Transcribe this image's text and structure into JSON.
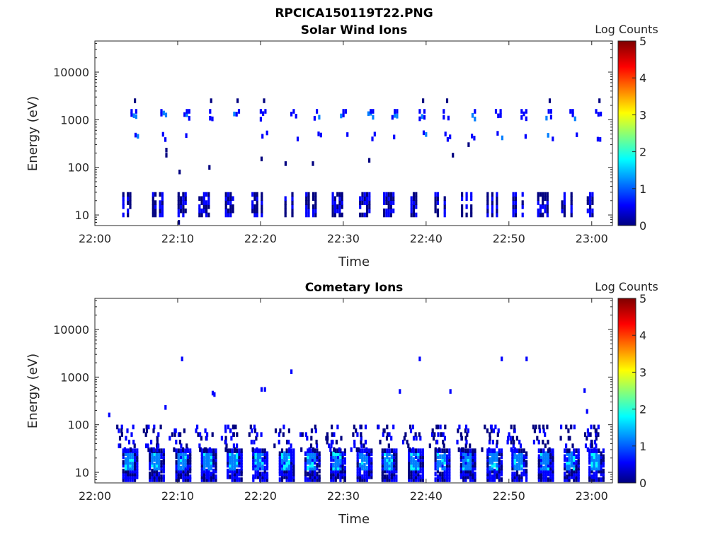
{
  "figure": {
    "title": "RPCICA150119T22.PNG"
  },
  "colors": {
    "axis": "#262626",
    "colormap": [
      "#00007f",
      "#0000ff",
      "#007fff",
      "#00ffff",
      "#7fff7f",
      "#ffff00",
      "#ff7f00",
      "#ff0000",
      "#7f0000"
    ]
  },
  "chart_data": [
    {
      "type": "heatmap",
      "title": "Solar Wind Ions",
      "xlabel": "Time",
      "ylabel": "Energy (eV)",
      "x_ticks": [
        "22:00",
        "22:10",
        "22:20",
        "22:30",
        "22:40",
        "22:50",
        "23:00"
      ],
      "x_range_minutes": [
        0,
        62.5
      ],
      "y_scale": "log",
      "y_range": [
        6,
        45000
      ],
      "y_ticks": [
        "10",
        "100",
        "1000",
        "10000"
      ],
      "colorbar": {
        "label": "Log Counts",
        "range": [
          0,
          5
        ],
        "ticks": [
          "0",
          "1",
          "2",
          "3",
          "4",
          "5"
        ]
      },
      "scan_start_minutes": [
        3.3,
        6.9,
        9.7,
        12.5,
        15.7,
        18.9,
        22.6,
        25.4,
        28.6,
        31.9,
        34.8,
        38.1,
        41.0,
        44.2,
        47.3,
        50.4,
        53.4,
        56.3,
        59.4
      ],
      "populations": [
        {
          "name": "",
          "energy_eV": 1200,
          "log_counts": 0.6
        },
        {
          "name": "",
          "energy_eV": 450,
          "log_counts": 0.5
        },
        {
          "name": "",
          "energy_eV": 18,
          "log_counts": 0.2
        }
      ]
    },
    {
      "type": "heatmap",
      "title": "Cometary Ions",
      "xlabel": "Time",
      "ylabel": "Energy (eV)",
      "x_ticks": [
        "22:00",
        "22:10",
        "22:20",
        "22:30",
        "22:40",
        "22:50",
        "23:00"
      ],
      "x_range_minutes": [
        0,
        62.5
      ],
      "y_scale": "log",
      "y_range": [
        6,
        45000
      ],
      "y_ticks": [
        "10",
        "100",
        "1000",
        "10000"
      ],
      "colorbar": {
        "label": "Log Counts",
        "range": [
          0,
          5
        ],
        "ticks": [
          "0",
          "1",
          "2",
          "3",
          "4",
          "5"
        ]
      },
      "scan_start_minutes": [
        3.3,
        6.5,
        9.7,
        12.8,
        15.9,
        19.0,
        22.2,
        25.3,
        28.4,
        31.6,
        34.6,
        37.8,
        41.0,
        44.1,
        47.3,
        50.3,
        53.5,
        56.6,
        59.6
      ],
      "populations": [
        {
          "name": "",
          "energy_eV_range": [
            8,
            30
          ],
          "log_counts_peak": 1.6
        },
        {
          "name": "",
          "energy_eV_range": [
            30,
            80
          ],
          "log_counts": 0.4
        }
      ]
    }
  ]
}
